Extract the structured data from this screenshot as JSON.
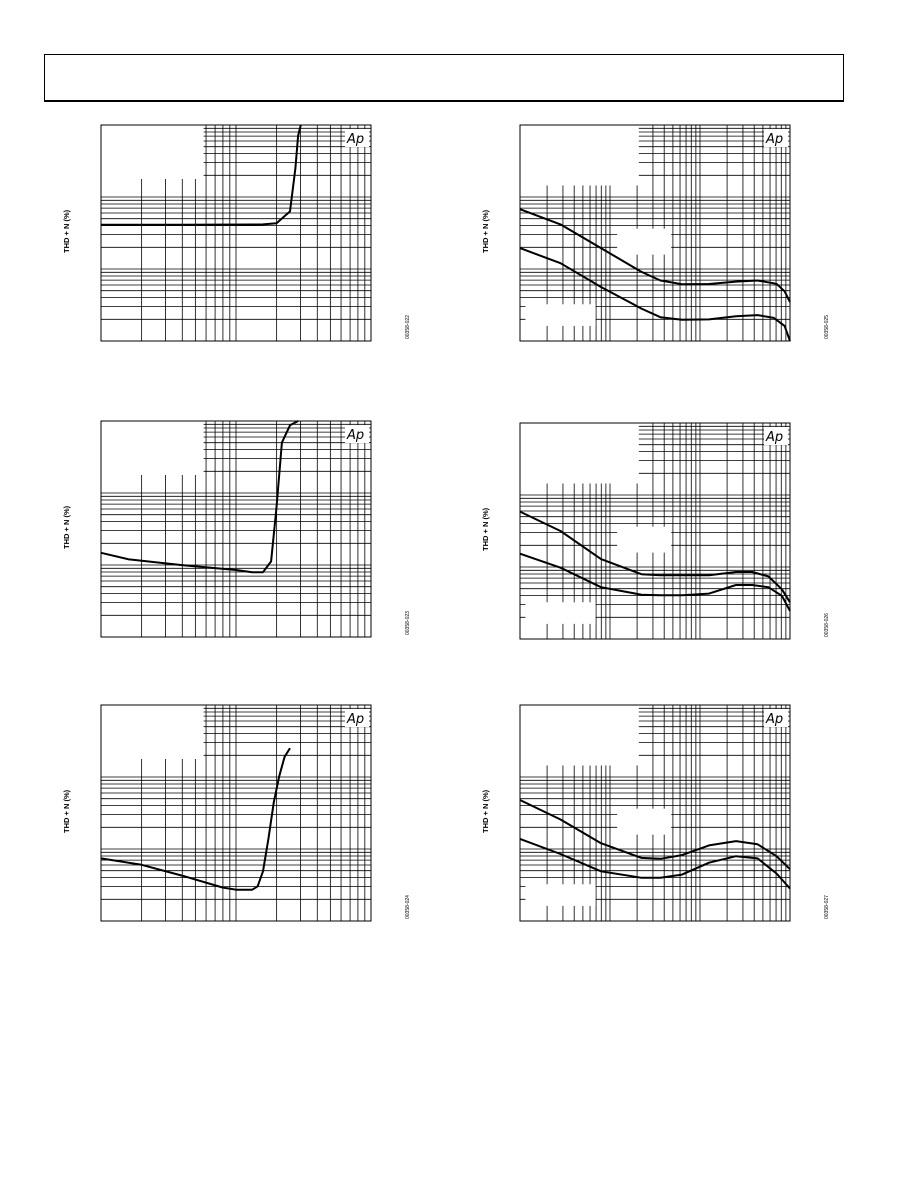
{
  "header": {
    "title": ""
  },
  "charts": [
    {
      "id": "c1",
      "fig_code": "00358-022",
      "y_label": "THD + N (%)",
      "logo": "Ap",
      "chart_data": {
        "type": "line",
        "title": "",
        "xlabel": "",
        "ylabel": "THD + N (%)",
        "x_scale": "log-decades",
        "y_scale": "log-decades",
        "x_decades": 2,
        "y_decades": 3,
        "series": [
          {
            "points": [
              [
                0,
                0.462
              ],
              [
                0.3,
                0.462
              ],
              [
                0.6,
                0.46
              ],
              [
                0.65,
                0.455
              ],
              [
                0.7,
                0.4
              ],
              [
                0.72,
                0.2
              ],
              [
                0.73,
                0.05
              ],
              [
                0.74,
                0
              ]
            ]
          }
        ]
      }
    },
    {
      "id": "c2",
      "fig_code": "00358-025",
      "y_label": "THD + N (%)",
      "logo": "Ap",
      "chart_data": {
        "type": "line",
        "title": "",
        "xlabel": "",
        "ylabel": "THD + N (%)",
        "x_scale": "log-decades",
        "y_scale": "log-decades",
        "x_decades": 3,
        "y_decades": 3,
        "series": [
          {
            "points": [
              [
                0,
                0.39
              ],
              [
                0.15,
                0.46
              ],
              [
                0.3,
                0.57
              ],
              [
                0.45,
                0.68
              ],
              [
                0.52,
                0.72
              ],
              [
                0.6,
                0.737
              ],
              [
                0.7,
                0.736
              ],
              [
                0.8,
                0.725
              ],
              [
                0.88,
                0.72
              ],
              [
                0.95,
                0.735
              ],
              [
                0.98,
                0.77
              ],
              [
                1.0,
                0.82
              ]
            ]
          },
          {
            "points": [
              [
                0,
                0.57
              ],
              [
                0.15,
                0.64
              ],
              [
                0.3,
                0.75
              ],
              [
                0.45,
                0.85
              ],
              [
                0.52,
                0.89
              ],
              [
                0.6,
                0.902
              ],
              [
                0.7,
                0.9
              ],
              [
                0.8,
                0.885
              ],
              [
                0.88,
                0.88
              ],
              [
                0.94,
                0.893
              ],
              [
                0.98,
                0.93
              ],
              [
                1.0,
                1.0
              ]
            ]
          }
        ]
      }
    },
    {
      "id": "c3",
      "fig_code": "00358-023",
      "y_label": "THD + N (%)",
      "logo": "Ap",
      "chart_data": {
        "type": "line",
        "title": "",
        "xlabel": "",
        "ylabel": "THD + N (%)",
        "x_scale": "log-decades",
        "y_scale": "log-decades",
        "x_decades": 2,
        "y_decades": 3,
        "series": [
          {
            "points": [
              [
                0,
                0.61
              ],
              [
                0.1,
                0.64
              ],
              [
                0.3,
                0.667
              ],
              [
                0.5,
                0.69
              ],
              [
                0.56,
                0.7
              ],
              [
                0.6,
                0.7
              ],
              [
                0.63,
                0.65
              ],
              [
                0.65,
                0.4
              ],
              [
                0.67,
                0.1
              ],
              [
                0.7,
                0.02
              ],
              [
                0.73,
                0
              ]
            ]
          }
        ]
      }
    },
    {
      "id": "c4",
      "fig_code": "00358-026",
      "y_label": "THD + N (%)",
      "logo": "Ap",
      "chart_data": {
        "type": "line",
        "title": "",
        "xlabel": "",
        "ylabel": "THD + N (%)",
        "x_scale": "log-decades",
        "y_scale": "log-decades",
        "x_decades": 3,
        "y_decades": 3,
        "series": [
          {
            "points": [
              [
                0,
                0.41
              ],
              [
                0.15,
                0.5
              ],
              [
                0.3,
                0.63
              ],
              [
                0.45,
                0.7
              ],
              [
                0.52,
                0.705
              ],
              [
                0.6,
                0.705
              ],
              [
                0.7,
                0.705
              ],
              [
                0.8,
                0.69
              ],
              [
                0.86,
                0.69
              ],
              [
                0.92,
                0.71
              ],
              [
                0.97,
                0.77
              ],
              [
                1.0,
                0.83
              ]
            ]
          },
          {
            "points": [
              [
                0,
                0.605
              ],
              [
                0.15,
                0.67
              ],
              [
                0.3,
                0.76
              ],
              [
                0.45,
                0.795
              ],
              [
                0.52,
                0.797
              ],
              [
                0.6,
                0.797
              ],
              [
                0.7,
                0.79
              ],
              [
                0.8,
                0.75
              ],
              [
                0.86,
                0.75
              ],
              [
                0.92,
                0.76
              ],
              [
                0.97,
                0.8
              ],
              [
                1.0,
                0.87
              ]
            ]
          }
        ]
      }
    },
    {
      "id": "c5",
      "fig_code": "00358-024",
      "y_label": "THD + N (%)",
      "logo": "Ap",
      "chart_data": {
        "type": "line",
        "title": "",
        "xlabel": "",
        "ylabel": "THD + N (%)",
        "x_scale": "log-decades",
        "y_scale": "log-decades",
        "x_decades": 2,
        "y_decades": 3,
        "series": [
          {
            "points": [
              [
                0,
                0.71
              ],
              [
                0.15,
                0.74
              ],
              [
                0.3,
                0.79
              ],
              [
                0.45,
                0.845
              ],
              [
                0.5,
                0.855
              ],
              [
                0.56,
                0.855
              ],
              [
                0.58,
                0.84
              ],
              [
                0.6,
                0.77
              ],
              [
                0.62,
                0.62
              ],
              [
                0.64,
                0.45
              ],
              [
                0.66,
                0.33
              ],
              [
                0.68,
                0.24
              ],
              [
                0.7,
                0.2
              ]
            ]
          }
        ]
      }
    },
    {
      "id": "c6",
      "fig_code": "00358-027",
      "y_label": "THD + N (%)",
      "logo": "Ap",
      "chart_data": {
        "type": "line",
        "title": "",
        "xlabel": "",
        "ylabel": "THD + N (%)",
        "x_scale": "log-decades",
        "y_scale": "log-decades",
        "x_decades": 3,
        "y_decades": 3,
        "series": [
          {
            "points": [
              [
                0,
                0.44
              ],
              [
                0.15,
                0.53
              ],
              [
                0.3,
                0.64
              ],
              [
                0.45,
                0.708
              ],
              [
                0.52,
                0.712
              ],
              [
                0.6,
                0.695
              ],
              [
                0.7,
                0.65
              ],
              [
                0.8,
                0.63
              ],
              [
                0.88,
                0.645
              ],
              [
                0.95,
                0.7
              ],
              [
                1.0,
                0.76
              ]
            ]
          },
          {
            "points": [
              [
                0,
                0.62
              ],
              [
                0.15,
                0.69
              ],
              [
                0.3,
                0.77
              ],
              [
                0.45,
                0.8
              ],
              [
                0.52,
                0.8
              ],
              [
                0.6,
                0.785
              ],
              [
                0.7,
                0.73
              ],
              [
                0.8,
                0.7
              ],
              [
                0.88,
                0.71
              ],
              [
                0.95,
                0.78
              ],
              [
                1.0,
                0.85
              ]
            ]
          }
        ]
      }
    }
  ]
}
